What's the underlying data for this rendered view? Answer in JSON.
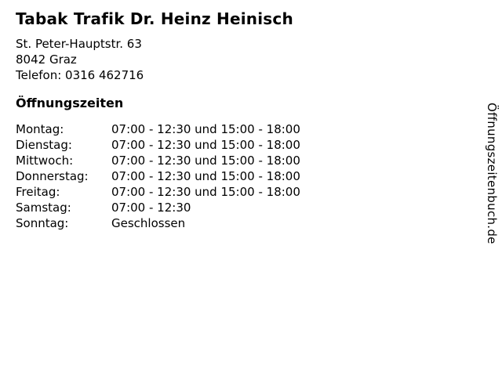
{
  "colors": {
    "background": "#ffffff",
    "text": "#000000"
  },
  "business": {
    "name": "Tabak Trafik Dr. Heinz Heinisch",
    "street": "St. Peter-Hauptstr. 63",
    "city": "8042 Graz",
    "phone": "Telefon: 0316 462716"
  },
  "hours": {
    "heading": "Öffnungszeiten",
    "rows": [
      {
        "day": "Montag:",
        "time": "07:00 - 12:30 und 15:00 - 18:00"
      },
      {
        "day": "Dienstag:",
        "time": "07:00 - 12:30 und 15:00 - 18:00"
      },
      {
        "day": "Mittwoch:",
        "time": "07:00 - 12:30 und 15:00 - 18:00"
      },
      {
        "day": "Donnerstag:",
        "time": "07:00 - 12:30 und 15:00 - 18:00"
      },
      {
        "day": "Freitag:",
        "time": "07:00 - 12:30 und 15:00 - 18:00"
      },
      {
        "day": "Samstag:",
        "time": "07:00 - 12:30"
      },
      {
        "day": "Sonntag:",
        "time": "Geschlossen"
      }
    ]
  },
  "watermark": {
    "label": "Öffnungszeitenbuch.de"
  }
}
